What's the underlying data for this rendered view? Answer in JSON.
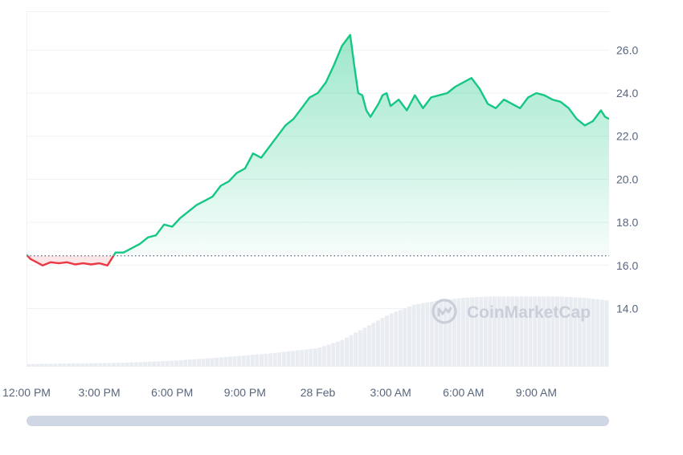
{
  "watermark": {
    "text": "CoinMarketCap"
  },
  "colors": {
    "up": "#16c784",
    "down": "#ea3943",
    "volume": "#e9edf2",
    "grid": "#eff2f5",
    "baseline": "#58667e",
    "axis_text": "#58667e"
  },
  "chart_data": {
    "type": "area",
    "title": "",
    "xlabel": "",
    "ylabel": "",
    "ylim": [
      11.3,
      27.8
    ],
    "xlim": [
      0,
      1440
    ],
    "baseline": 16.45,
    "grid": true,
    "yaxis_position": "right",
    "y_ticks": [
      14,
      16,
      18,
      20,
      22,
      24,
      26
    ],
    "y_tick_labels": [
      "14.0",
      "16.0",
      "18.0",
      "20.0",
      "22.0",
      "24.0",
      "26.0"
    ],
    "x_ticks": [
      0,
      180,
      360,
      540,
      720,
      900,
      1080,
      1260
    ],
    "x_tick_labels": [
      "12:00 PM",
      "3:00 PM",
      "6:00 PM",
      "9:00 PM",
      "28 Feb",
      "3:00 AM",
      "6:00 AM",
      "9:00 AM"
    ],
    "series": [
      {
        "kind": "price",
        "x": [
          0,
          10,
          20,
          40,
          60,
          80,
          100,
          120,
          140,
          160,
          180,
          200,
          220,
          240,
          260,
          280,
          300,
          320,
          340,
          360,
          380,
          400,
          420,
          440,
          460,
          480,
          500,
          520,
          540,
          560,
          580,
          600,
          620,
          640,
          660,
          680,
          700,
          720,
          740,
          760,
          780,
          800,
          810,
          820,
          830,
          840,
          850,
          860,
          870,
          880,
          890,
          900,
          920,
          940,
          960,
          980,
          1000,
          1020,
          1040,
          1060,
          1080,
          1100,
          1120,
          1140,
          1160,
          1180,
          1200,
          1220,
          1240,
          1260,
          1280,
          1300,
          1320,
          1340,
          1360,
          1380,
          1400,
          1420,
          1430,
          1440
        ],
        "y": [
          16.5,
          16.3,
          16.2,
          16.0,
          16.15,
          16.1,
          16.15,
          16.05,
          16.1,
          16.05,
          16.1,
          16.0,
          16.6,
          16.6,
          16.8,
          17.0,
          17.3,
          17.4,
          17.9,
          17.8,
          18.2,
          18.5,
          18.8,
          19.0,
          19.2,
          19.7,
          19.9,
          20.3,
          20.5,
          21.2,
          21.0,
          21.5,
          22.0,
          22.5,
          22.8,
          23.3,
          23.8,
          24.0,
          24.5,
          25.3,
          26.2,
          26.7,
          25.3,
          24.0,
          23.9,
          23.2,
          22.9,
          23.2,
          23.5,
          23.9,
          24.0,
          23.4,
          23.7,
          23.2,
          23.9,
          23.3,
          23.8,
          23.9,
          24.0,
          24.3,
          24.5,
          24.7,
          24.2,
          23.5,
          23.3,
          23.7,
          23.5,
          23.3,
          23.8,
          24.0,
          23.9,
          23.7,
          23.6,
          23.3,
          22.8,
          22.5,
          22.7,
          23.2,
          22.9,
          22.8
        ]
      },
      {
        "kind": "volume",
        "x": [
          0,
          120,
          240,
          360,
          480,
          600,
          720,
          780,
          840,
          900,
          960,
          1020,
          1080,
          1140,
          1200,
          1260,
          1320,
          1380,
          1440
        ],
        "y": [
          0.02,
          0.025,
          0.03,
          0.045,
          0.07,
          0.1,
          0.14,
          0.2,
          0.3,
          0.4,
          0.47,
          0.5,
          0.52,
          0.53,
          0.53,
          0.53,
          0.53,
          0.52,
          0.5
        ]
      }
    ]
  }
}
